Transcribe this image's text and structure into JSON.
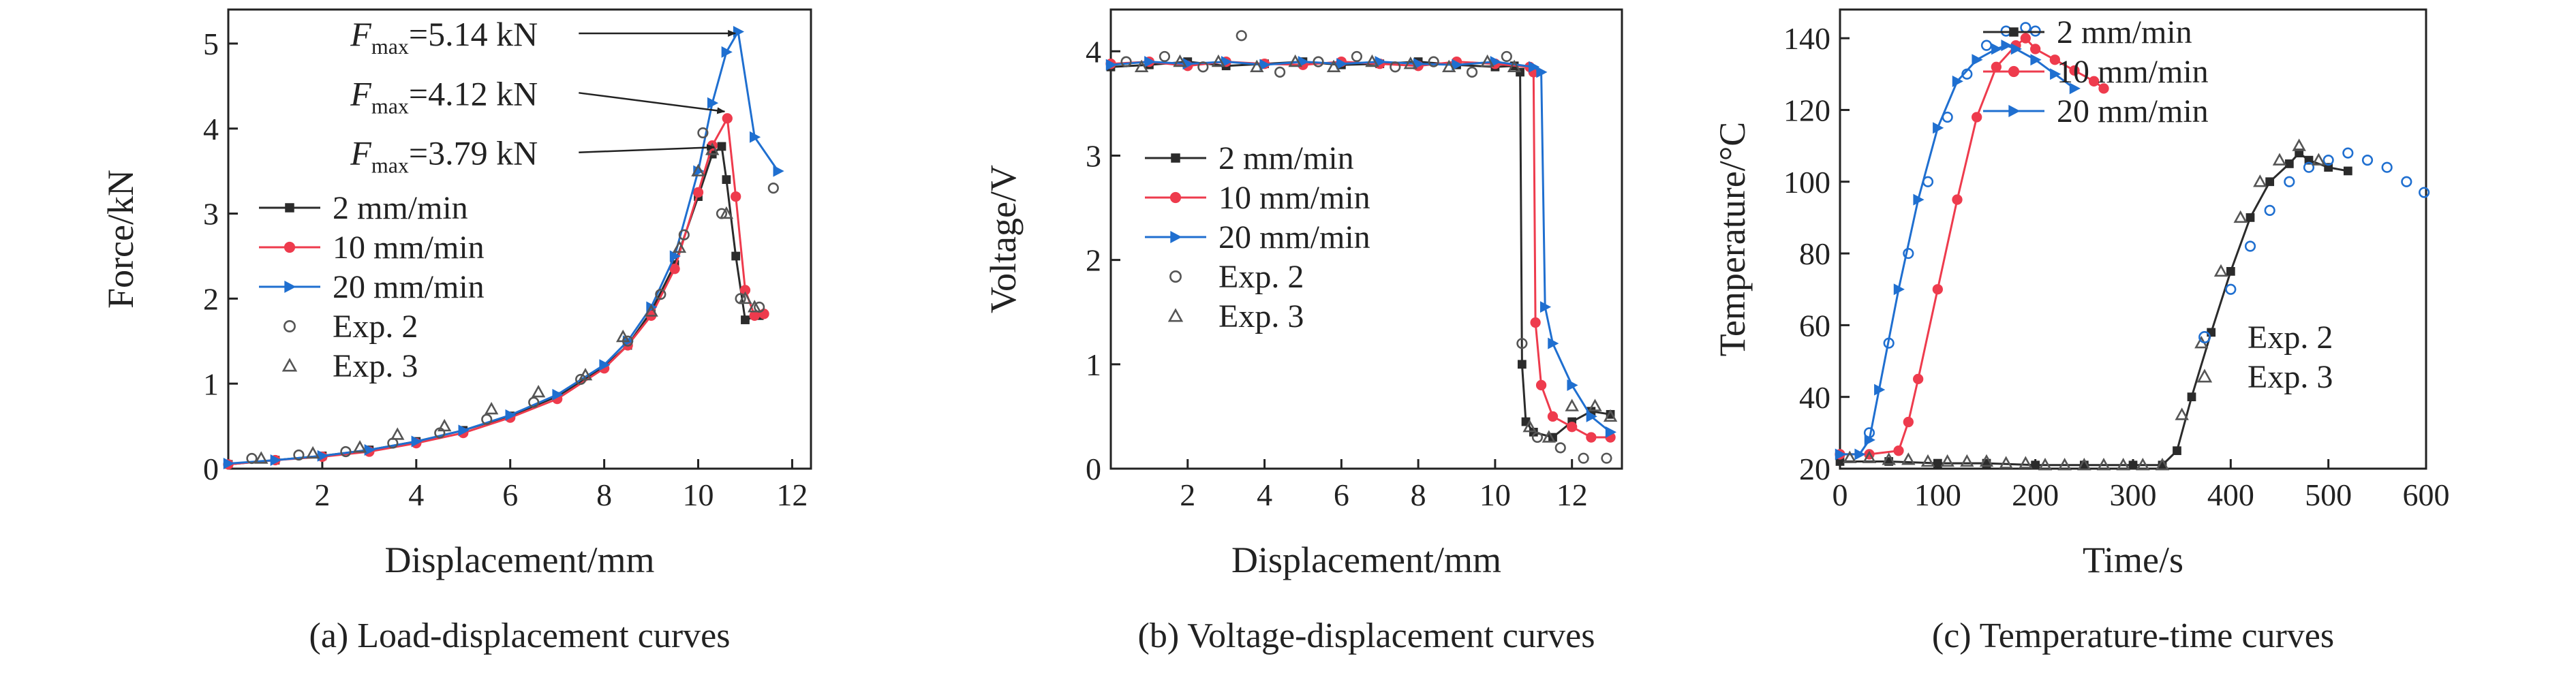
{
  "colors": {
    "black": "#2b2b2b",
    "red": "#ee3b4d",
    "blue": "#1f6fd0",
    "exp": "#555555"
  },
  "chart_data": [
    {
      "id": "a",
      "type": "line",
      "caption": "(a) Load-displacement curves",
      "xlabel": "Displacement/mm",
      "ylabel": "Force/kN",
      "xlim": [
        0,
        12.4
      ],
      "ylim": [
        0,
        5.4
      ],
      "xticks": [
        2,
        4,
        6,
        8,
        10,
        12
      ],
      "yticks": [
        0,
        1,
        2,
        3,
        4,
        5
      ],
      "grid": false,
      "legend_position": "middle-left",
      "legend": [
        {
          "label": "2 mm/min",
          "series": 0
        },
        {
          "label": "10 mm/min",
          "series": 1
        },
        {
          "label": "20 mm/min",
          "series": 2
        },
        {
          "label": "Exp. 2",
          "series": 3
        },
        {
          "label": "Exp. 3",
          "series": 4
        }
      ],
      "annotations": [
        {
          "main": "F",
          "sub": "max",
          "rest": "=5.14 kN",
          "tx": 2.6,
          "ty": 5.12,
          "ax": 10.85,
          "ay": 5.12
        },
        {
          "main": "F",
          "sub": "max",
          "rest": "=4.12 kN",
          "tx": 2.6,
          "ty": 4.42,
          "ax": 10.62,
          "ay": 4.2
        },
        {
          "main": "F",
          "sub": "max",
          "rest": "=3.79 kN",
          "tx": 2.6,
          "ty": 3.72,
          "ax": 10.4,
          "ay": 3.78
        }
      ],
      "series": [
        {
          "name": "2 mm/min",
          "color": "#2b2b2b",
          "marker": "square",
          "x": [
            0,
            1,
            2,
            3,
            4,
            5,
            6,
            7,
            8,
            8.5,
            9,
            9.5,
            10,
            10.3,
            10.5,
            10.6,
            10.8,
            11.0,
            11.3
          ],
          "y": [
            0.05,
            0.1,
            0.15,
            0.22,
            0.32,
            0.45,
            0.62,
            0.85,
            1.2,
            1.45,
            1.85,
            2.4,
            3.2,
            3.7,
            3.79,
            3.4,
            2.5,
            1.75,
            1.8
          ]
        },
        {
          "name": "10 mm/min",
          "color": "#ee3b4d",
          "marker": "circle",
          "x": [
            0,
            1,
            2,
            3,
            4,
            5,
            6,
            7,
            8,
            8.5,
            9,
            9.5,
            10,
            10.3,
            10.62,
            10.8,
            11.0,
            11.2,
            11.4
          ],
          "y": [
            0.05,
            0.1,
            0.14,
            0.2,
            0.3,
            0.42,
            0.6,
            0.82,
            1.18,
            1.45,
            1.8,
            2.35,
            3.25,
            3.8,
            4.12,
            3.2,
            2.1,
            1.8,
            1.82
          ]
        },
        {
          "name": "20 mm/min",
          "color": "#1f6fd0",
          "marker": "triangle-right",
          "x": [
            0,
            1,
            2,
            3,
            4,
            5,
            6,
            7,
            8,
            8.5,
            9,
            9.5,
            10,
            10.3,
            10.6,
            10.85,
            11.2,
            11.7
          ],
          "y": [
            0.06,
            0.1,
            0.15,
            0.22,
            0.32,
            0.45,
            0.63,
            0.87,
            1.22,
            1.5,
            1.9,
            2.5,
            3.5,
            4.3,
            4.9,
            5.14,
            3.9,
            3.5
          ]
        },
        {
          "name": "Exp. 2",
          "color": "#555555",
          "marker": "open-circle",
          "line": false,
          "x": [
            0.5,
            1.5,
            2.5,
            3.5,
            4.5,
            5.5,
            6.5,
            7.5,
            8.5,
            9.2,
            9.7,
            10.1,
            10.5,
            10.9,
            11.3,
            11.6
          ],
          "y": [
            0.12,
            0.16,
            0.2,
            0.3,
            0.42,
            0.58,
            0.78,
            1.05,
            1.5,
            2.05,
            2.75,
            3.95,
            3.0,
            2.0,
            1.9,
            3.3
          ]
        },
        {
          "name": "Exp. 3",
          "color": "#555555",
          "marker": "open-triangle",
          "line": false,
          "x": [
            0.7,
            1.8,
            2.8,
            3.6,
            4.6,
            5.6,
            6.6,
            7.6,
            8.4,
            9.0,
            9.6,
            10.0,
            10.3,
            10.6,
            11.0,
            11.2
          ],
          "y": [
            0.12,
            0.18,
            0.25,
            0.4,
            0.5,
            0.7,
            0.9,
            1.1,
            1.55,
            1.85,
            2.6,
            3.5,
            3.75,
            3.0,
            2.0,
            1.9
          ]
        }
      ]
    },
    {
      "id": "b",
      "type": "line",
      "caption": "(b) Voltage-displacement curves",
      "xlabel": "Displacement/mm",
      "ylabel": "Voltage/V",
      "xlim": [
        0,
        13.3
      ],
      "ylim": [
        0,
        4.4
      ],
      "xticks": [
        2,
        4,
        6,
        8,
        10,
        12
      ],
      "yticks": [
        0,
        1,
        2,
        3,
        4
      ],
      "grid": false,
      "legend_position": "middle-left",
      "legend": [
        {
          "label": "2 mm/min",
          "series": 0
        },
        {
          "label": "10 mm/min",
          "series": 1
        },
        {
          "label": "20 mm/min",
          "series": 2
        },
        {
          "label": "Exp. 2",
          "series": 3
        },
        {
          "label": "Exp. 3",
          "series": 4
        }
      ],
      "annotations": [],
      "series": [
        {
          "name": "2 mm/min",
          "color": "#2b2b2b",
          "marker": "square",
          "x": [
            0,
            1,
            2,
            3,
            4,
            5,
            6,
            7,
            8,
            9,
            10,
            10.5,
            10.65,
            10.7,
            10.8,
            11.0,
            11.5,
            12.0,
            12.5,
            13.0
          ],
          "y": [
            3.85,
            3.87,
            3.9,
            3.86,
            3.88,
            3.9,
            3.87,
            3.88,
            3.9,
            3.87,
            3.85,
            3.86,
            3.8,
            1.0,
            0.45,
            0.35,
            0.3,
            0.45,
            0.55,
            0.52
          ]
        },
        {
          "name": "10 mm/min",
          "color": "#ee3b4d",
          "marker": "circle",
          "x": [
            0,
            1,
            2,
            3,
            4,
            5,
            6,
            7,
            8,
            9,
            10,
            10.9,
            11.0,
            11.05,
            11.2,
            11.5,
            12.0,
            12.5,
            13.0
          ],
          "y": [
            3.88,
            3.9,
            3.86,
            3.9,
            3.88,
            3.87,
            3.9,
            3.88,
            3.86,
            3.9,
            3.88,
            3.85,
            3.8,
            1.4,
            0.8,
            0.5,
            0.4,
            0.3,
            0.3
          ]
        },
        {
          "name": "20 mm/min",
          "color": "#1f6fd0",
          "marker": "triangle-right",
          "x": [
            0,
            1,
            2,
            3,
            4,
            5,
            6,
            7,
            8,
            9,
            10,
            11.0,
            11.2,
            11.3,
            11.5,
            12.0,
            12.5,
            13.0
          ],
          "y": [
            3.87,
            3.9,
            3.88,
            3.9,
            3.87,
            3.9,
            3.88,
            3.9,
            3.88,
            3.87,
            3.9,
            3.85,
            3.8,
            1.55,
            1.2,
            0.8,
            0.5,
            0.35
          ]
        },
        {
          "name": "Exp. 2",
          "color": "#555555",
          "marker": "open-circle",
          "line": false,
          "x": [
            0.4,
            1.4,
            2.4,
            3.4,
            4.4,
            5.4,
            6.4,
            7.4,
            8.4,
            9.4,
            10.3,
            10.7,
            11.1,
            11.7,
            12.3,
            12.9
          ],
          "y": [
            3.9,
            3.95,
            3.85,
            4.15,
            3.8,
            3.9,
            3.95,
            3.85,
            3.9,
            3.8,
            3.95,
            1.2,
            0.3,
            0.2,
            0.1,
            0.1
          ]
        },
        {
          "name": "Exp. 3",
          "color": "#555555",
          "marker": "open-triangle",
          "line": false,
          "x": [
            0.8,
            1.8,
            2.8,
            3.8,
            4.8,
            5.8,
            6.8,
            7.8,
            8.8,
            9.8,
            10.5,
            10.9,
            11.4,
            12.0,
            12.6,
            13.0
          ],
          "y": [
            3.85,
            3.9,
            3.9,
            3.85,
            3.9,
            3.85,
            3.9,
            3.88,
            3.85,
            3.9,
            3.85,
            0.4,
            0.3,
            0.6,
            0.6,
            0.5
          ]
        }
      ]
    },
    {
      "id": "c",
      "type": "line",
      "caption": "(c) Temperature-time curves",
      "xlabel": "Time/s",
      "ylabel": "Temperature/°C",
      "xlim": [
        0,
        600
      ],
      "ylim": [
        20,
        148
      ],
      "xticks": [
        0,
        100,
        200,
        300,
        400,
        500,
        600
      ],
      "yticks": [
        20,
        40,
        60,
        80,
        100,
        120,
        140
      ],
      "grid": false,
      "legend_position": "top-right",
      "legend": [
        {
          "label": "2 mm/min",
          "series": 0
        },
        {
          "label": "10 mm/min",
          "series": 1
        },
        {
          "label": "20 mm/min",
          "series": 2
        },
        {
          "label": "Exp. 2",
          "series": 3,
          "secondary": true
        },
        {
          "label": "Exp. 3",
          "series": 4,
          "secondary": true
        }
      ],
      "annotations": [],
      "series": [
        {
          "name": "2 mm/min",
          "color": "#2b2b2b",
          "marker": "square",
          "x": [
            0,
            50,
            100,
            150,
            200,
            250,
            300,
            330,
            345,
            360,
            380,
            400,
            420,
            440,
            460,
            470,
            480,
            500,
            520
          ],
          "y": [
            22,
            22,
            21.5,
            21.5,
            21,
            21,
            21,
            21,
            25,
            40,
            58,
            75,
            90,
            100,
            105,
            108,
            106,
            104,
            103
          ]
        },
        {
          "name": "10 mm/min",
          "color": "#ee3b4d",
          "marker": "circle",
          "x": [
            0,
            30,
            60,
            70,
            80,
            100,
            120,
            140,
            160,
            180,
            190,
            200,
            220,
            240,
            260,
            270
          ],
          "y": [
            24,
            24,
            25,
            33,
            45,
            70,
            95,
            118,
            132,
            138,
            140,
            137,
            134,
            131,
            128,
            126
          ]
        },
        {
          "name": "20 mm/min",
          "color": "#1f6fd0",
          "marker": "triangle-right",
          "x": [
            0,
            20,
            30,
            40,
            60,
            80,
            100,
            120,
            140,
            160,
            170,
            180,
            200,
            220,
            240
          ],
          "y": [
            24,
            24,
            28,
            42,
            70,
            95,
            115,
            128,
            134,
            137,
            138,
            137,
            134,
            130,
            126
          ]
        },
        {
          "name": "Exp. 2",
          "color": "#1f6fd0",
          "marker": "open-circle",
          "line": false,
          "x": [
            30,
            50,
            70,
            90,
            110,
            130,
            150,
            170,
            190,
            200,
            400,
            420,
            440,
            460,
            480,
            500,
            520,
            540,
            560,
            580,
            598
          ],
          "y": [
            30,
            55,
            80,
            100,
            118,
            130,
            138,
            142,
            143,
            142,
            70,
            82,
            92,
            100,
            104,
            106,
            108,
            106,
            104,
            100,
            97
          ]
        },
        {
          "name": "Exp. 3",
          "color": "#555555",
          "marker": "open-triangle",
          "line": false,
          "x": [
            10,
            30,
            50,
            70,
            90,
            110,
            130,
            150,
            170,
            190,
            210,
            230,
            250,
            270,
            290,
            310,
            330,
            350,
            370,
            390,
            410,
            430,
            450,
            470,
            490
          ],
          "y": [
            23,
            23,
            22.5,
            22.5,
            22,
            22,
            22,
            22,
            21.5,
            21.5,
            21,
            21,
            21,
            21,
            21,
            21,
            21,
            35,
            55,
            75,
            90,
            100,
            106,
            110,
            106
          ]
        }
      ]
    }
  ]
}
